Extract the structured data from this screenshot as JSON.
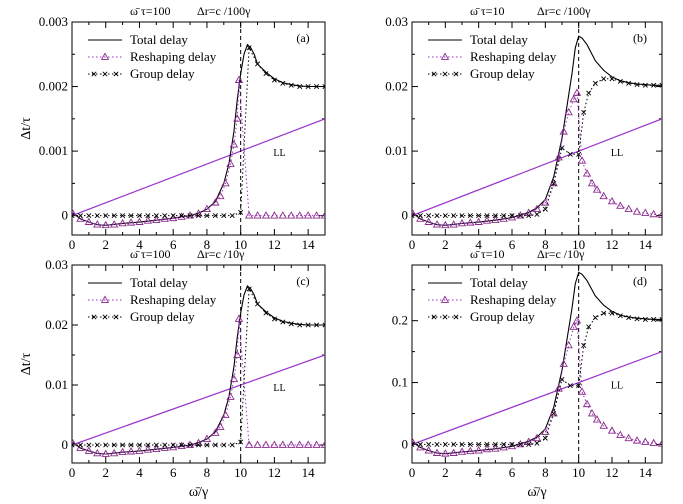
{
  "figure": {
    "ylabel_common": "Δt/τ",
    "xlabel_common": "ω̄/γ"
  },
  "chart_data": [
    {
      "type": "line",
      "panel_label": "(a)",
      "header_left": "ω̄ τ=100",
      "header_right": "Δr=c /100γ",
      "ylabel": "Δt/τ",
      "xlabel": "",
      "xlim": [
        0,
        15
      ],
      "ylim": [
        -0.0003,
        0.003
      ],
      "xticks": [
        0,
        2,
        4,
        6,
        8,
        10,
        12,
        14
      ],
      "yticks": [
        0,
        0.001,
        0.002,
        0.003
      ],
      "ytick_labels": [
        "0",
        "0.001",
        "0.002",
        "0.003"
      ],
      "vline_x": 10,
      "legend_position": "top-left",
      "ll_label": "LL",
      "ll_line": {
        "x": [
          0,
          15
        ],
        "y": [
          0,
          0.0015
        ],
        "color": "#9932cc"
      },
      "series": [
        {
          "name": "Total delay",
          "style": "solid",
          "x": [
            0,
            0.5,
            1,
            1.5,
            2,
            3,
            4,
            5,
            6,
            7,
            7.5,
            8,
            8.5,
            9,
            9.3,
            9.6,
            9.8,
            10,
            10.2,
            10.4,
            10.6,
            10.8,
            11,
            11.5,
            12,
            12.5,
            13,
            13.5,
            14,
            14.5,
            15
          ],
          "y": [
            5e-05,
            -5e-05,
            -0.0001,
            -0.00014,
            -0.00015,
            -0.00012,
            -0.0001,
            -7e-05,
            -4e-05,
            0.0,
            4e-05,
            0.0001,
            0.00022,
            0.0005,
            0.0008,
            0.0013,
            0.0018,
            0.0022,
            0.0025,
            0.00265,
            0.0026,
            0.0025,
            0.00235,
            0.00222,
            0.00212,
            0.00206,
            0.00203,
            0.00201,
            0.002,
            0.002,
            0.002
          ]
        },
        {
          "name": "Reshaping delay",
          "style": "dotted",
          "marker": "triangle",
          "x": [
            0,
            0.5,
            1,
            1.5,
            2,
            2.5,
            3,
            3.5,
            4,
            4.5,
            5,
            5.5,
            6,
            6.5,
            7,
            7.5,
            8,
            8.5,
            8.8,
            9.1,
            9.4,
            9.6,
            9.8,
            9.9,
            10.5,
            11,
            11.5,
            12,
            12.5,
            13,
            13.5,
            14,
            14.5,
            15
          ],
          "y": [
            5e-05,
            -5e-05,
            -0.0001,
            -0.00014,
            -0.00015,
            -0.00014,
            -0.00012,
            -0.00011,
            -0.0001,
            -8e-05,
            -7e-05,
            -5e-05,
            -4e-05,
            -2e-05,
            0.0,
            3e-05,
            0.0001,
            0.0002,
            0.0003,
            0.0005,
            0.0008,
            0.0011,
            0.0015,
            0.0021,
            0.0,
            0.0,
            0.0,
            0.0,
            0.0,
            0.0,
            0.0,
            0.0,
            0.0,
            0.0
          ]
        },
        {
          "name": "Group delay",
          "style": "dotted",
          "marker": "cross",
          "x": [
            0,
            0.5,
            1,
            1.5,
            2,
            2.5,
            3,
            3.5,
            4,
            4.5,
            5,
            5.5,
            6,
            6.5,
            7,
            7.5,
            8,
            8.5,
            9,
            9.5,
            10,
            10.5,
            11,
            11.5,
            12,
            12.5,
            13,
            13.5,
            14,
            14.5,
            15
          ],
          "y": [
            0,
            0,
            0,
            0,
            0,
            0,
            0,
            0,
            0,
            0,
            0,
            0,
            0,
            0,
            0,
            0,
            0,
            0,
            0,
            0,
            5e-05,
            0.0026,
            0.00235,
            0.0022,
            0.0021,
            0.00205,
            0.00202,
            0.002,
            0.002,
            0.002,
            0.002
          ]
        }
      ]
    },
    {
      "type": "line",
      "panel_label": "(b)",
      "header_left": "ω̄ τ=10",
      "header_right": "Δr=c /100γ",
      "ylabel": "",
      "xlabel": "",
      "xlim": [
        0,
        15
      ],
      "ylim": [
        -0.003,
        0.03
      ],
      "xticks": [
        0,
        2,
        4,
        6,
        8,
        10,
        12,
        14
      ],
      "yticks": [
        0,
        0.01,
        0.02,
        0.03
      ],
      "ytick_labels": [
        "0",
        "0.01",
        "0.02",
        "0.03"
      ],
      "vline_x": 10,
      "legend_position": "top-left",
      "ll_label": "LL",
      "ll_line": {
        "x": [
          0,
          15
        ],
        "y": [
          0,
          0.015
        ],
        "color": "#9932cc"
      },
      "series": [
        {
          "name": "Total delay",
          "style": "solid",
          "x": [
            0,
            0.5,
            1,
            1.5,
            2,
            3,
            4,
            5,
            6,
            7,
            7.5,
            8,
            8.5,
            9,
            9.3,
            9.6,
            9.8,
            10,
            10.2,
            10.5,
            11,
            11.5,
            12,
            12.5,
            13,
            13.5,
            14,
            14.5,
            15
          ],
          "y": [
            0.0005,
            -0.0005,
            -0.001,
            -0.0014,
            -0.0015,
            -0.0012,
            -0.001,
            -0.0007,
            -0.0003,
            0.0005,
            0.0012,
            0.0025,
            0.006,
            0.012,
            0.017,
            0.022,
            0.026,
            0.0278,
            0.0275,
            0.0265,
            0.024,
            0.0225,
            0.0215,
            0.0209,
            0.0206,
            0.0204,
            0.0203,
            0.0202,
            0.0202
          ]
        },
        {
          "name": "Reshaping delay",
          "style": "dotted",
          "marker": "triangle",
          "x": [
            0,
            0.5,
            1,
            1.5,
            2,
            2.5,
            3,
            3.5,
            4,
            4.5,
            5,
            5.5,
            6,
            6.5,
            7,
            7.5,
            8,
            8.5,
            8.8,
            9.1,
            9.4,
            9.7,
            9.9,
            10.2,
            10.5,
            10.8,
            11.1,
            11.5,
            12,
            12.5,
            13,
            13.5,
            14,
            14.5,
            15
          ],
          "y": [
            0.0005,
            -0.0005,
            -0.001,
            -0.0014,
            -0.0015,
            -0.0014,
            -0.0012,
            -0.0011,
            -0.001,
            -0.0008,
            -0.0007,
            -0.0005,
            -0.0003,
            0.0,
            0.0004,
            0.001,
            0.002,
            0.005,
            0.009,
            0.013,
            0.016,
            0.018,
            0.019,
            0.0085,
            0.0065,
            0.005,
            0.004,
            0.003,
            0.0022,
            0.0015,
            0.001,
            0.0006,
            0.0004,
            0.0002,
            0.0001
          ]
        },
        {
          "name": "Group delay",
          "style": "dotted",
          "marker": "cross",
          "x": [
            0,
            0.5,
            1,
            1.5,
            2,
            2.5,
            3,
            3.5,
            4,
            4.5,
            5,
            5.5,
            6,
            6.5,
            7,
            7.5,
            8,
            8.5,
            9,
            9.5,
            10,
            10.3,
            10.6,
            11,
            11.5,
            12,
            12.5,
            13,
            13.5,
            14,
            14.5,
            15
          ],
          "y": [
            0,
            0,
            0,
            0,
            0,
            0,
            0,
            0,
            0,
            0,
            0,
            0,
            0,
            0,
            0,
            0.0002,
            0.001,
            0.005,
            0.0105,
            0.0095,
            0.0095,
            0.016,
            0.019,
            0.0205,
            0.0212,
            0.0212,
            0.0208,
            0.0205,
            0.0203,
            0.0202,
            0.0202,
            0.0202
          ]
        }
      ]
    },
    {
      "type": "line",
      "panel_label": "(c)",
      "header_left": "ω̄ τ=100",
      "header_right": "Δr=c /10γ",
      "ylabel": "Δt/τ",
      "xlabel": "ω̄/γ",
      "xlim": [
        0,
        15
      ],
      "ylim": [
        -0.003,
        0.03
      ],
      "xticks": [
        0,
        2,
        4,
        6,
        8,
        10,
        12,
        14
      ],
      "yticks": [
        0,
        0.01,
        0.02,
        0.03
      ],
      "ytick_labels": [
        "0",
        "0.01",
        "0.02",
        "0.03"
      ],
      "vline_x": 10,
      "legend_position": "top-left",
      "ll_label": "LL",
      "ll_line": {
        "x": [
          0,
          15
        ],
        "y": [
          0,
          0.015
        ],
        "color": "#9932cc"
      },
      "series": [
        {
          "name": "Total delay",
          "style": "solid",
          "x": [
            0,
            0.5,
            1,
            1.5,
            2,
            3,
            4,
            5,
            6,
            7,
            7.5,
            8,
            8.5,
            9,
            9.3,
            9.6,
            9.8,
            10,
            10.2,
            10.4,
            10.6,
            10.8,
            11,
            11.5,
            12,
            12.5,
            13,
            13.5,
            14,
            14.5,
            15
          ],
          "y": [
            0.0005,
            -0.0005,
            -0.001,
            -0.0014,
            -0.0015,
            -0.0012,
            -0.001,
            -0.0007,
            -0.0004,
            0.0,
            0.0004,
            0.001,
            0.0022,
            0.005,
            0.008,
            0.013,
            0.018,
            0.022,
            0.025,
            0.0265,
            0.026,
            0.025,
            0.0235,
            0.0222,
            0.0212,
            0.0206,
            0.0203,
            0.0201,
            0.02,
            0.02,
            0.02
          ]
        },
        {
          "name": "Reshaping delay",
          "style": "dotted",
          "marker": "triangle",
          "x": [
            0,
            0.5,
            1,
            1.5,
            2,
            2.5,
            3,
            3.5,
            4,
            4.5,
            5,
            5.5,
            6,
            6.5,
            7,
            7.5,
            8,
            8.5,
            8.8,
            9.1,
            9.4,
            9.6,
            9.8,
            9.9,
            10.5,
            11,
            11.5,
            12,
            12.5,
            13,
            13.5,
            14,
            14.5,
            15
          ],
          "y": [
            0.0005,
            -0.0005,
            -0.001,
            -0.0014,
            -0.0015,
            -0.0014,
            -0.0012,
            -0.0011,
            -0.001,
            -0.0008,
            -0.0007,
            -0.0005,
            -0.0004,
            -0.0002,
            0.0,
            0.0003,
            0.001,
            0.002,
            0.003,
            0.005,
            0.008,
            0.011,
            0.015,
            0.021,
            0.0,
            0.0,
            0.0,
            0.0,
            0.0,
            0.0,
            0.0,
            0.0,
            0.0,
            0.0
          ]
        },
        {
          "name": "Group delay",
          "style": "dotted",
          "marker": "cross",
          "x": [
            0,
            0.5,
            1,
            1.5,
            2,
            2.5,
            3,
            3.5,
            4,
            4.5,
            5,
            5.5,
            6,
            6.5,
            7,
            7.5,
            8,
            8.5,
            9,
            9.5,
            10,
            10.5,
            11,
            11.5,
            12,
            12.5,
            13,
            13.5,
            14,
            14.5,
            15
          ],
          "y": [
            0,
            0,
            0,
            0,
            0,
            0,
            0,
            0,
            0,
            0,
            0,
            0,
            0,
            0,
            0,
            0,
            0,
            0,
            0,
            0,
            0.0005,
            0.026,
            0.0235,
            0.022,
            0.021,
            0.0205,
            0.0202,
            0.02,
            0.02,
            0.02,
            0.02
          ]
        }
      ]
    },
    {
      "type": "line",
      "panel_label": "(d)",
      "header_left": "ω̄ τ=10",
      "header_right": "Δr=c /10γ",
      "ylabel": "",
      "xlabel": "ω̄/γ",
      "xlim": [
        0,
        15
      ],
      "ylim": [
        -0.03,
        0.29
      ],
      "xticks": [
        0,
        2,
        4,
        6,
        8,
        10,
        12,
        14
      ],
      "yticks": [
        0,
        0.1,
        0.2
      ],
      "ytick_labels": [
        "0",
        "0.1",
        "0.2"
      ],
      "vline_x": 10,
      "legend_position": "top-left",
      "ll_label": "LL",
      "ll_line": {
        "x": [
          0,
          15
        ],
        "y": [
          0,
          0.15
        ],
        "color": "#9932cc"
      },
      "series": [
        {
          "name": "Total delay",
          "style": "solid",
          "x": [
            0,
            0.5,
            1,
            1.5,
            2,
            3,
            4,
            5,
            6,
            7,
            7.5,
            8,
            8.5,
            9,
            9.3,
            9.6,
            9.8,
            10,
            10.2,
            10.5,
            11,
            11.5,
            12,
            12.5,
            13,
            13.5,
            14,
            14.5,
            15
          ],
          "y": [
            0.005,
            -0.005,
            -0.01,
            -0.014,
            -0.015,
            -0.012,
            -0.01,
            -0.007,
            -0.003,
            0.005,
            0.012,
            0.025,
            0.06,
            0.12,
            0.17,
            0.22,
            0.26,
            0.278,
            0.275,
            0.265,
            0.24,
            0.225,
            0.215,
            0.209,
            0.206,
            0.204,
            0.203,
            0.202,
            0.202
          ]
        },
        {
          "name": "Reshaping delay",
          "style": "dotted",
          "marker": "triangle",
          "x": [
            0,
            0.5,
            1,
            1.5,
            2,
            2.5,
            3,
            3.5,
            4,
            4.5,
            5,
            5.5,
            6,
            6.5,
            7,
            7.5,
            8,
            8.5,
            8.8,
            9.1,
            9.4,
            9.7,
            9.9,
            10.2,
            10.5,
            10.8,
            11.1,
            11.5,
            12,
            12.5,
            13,
            13.5,
            14,
            14.5,
            15
          ],
          "y": [
            0.005,
            -0.005,
            -0.01,
            -0.014,
            -0.015,
            -0.014,
            -0.012,
            -0.011,
            -0.01,
            -0.008,
            -0.007,
            -0.005,
            -0.003,
            0.0,
            0.004,
            0.01,
            0.02,
            0.05,
            0.09,
            0.13,
            0.16,
            0.19,
            0.2,
            0.085,
            0.065,
            0.05,
            0.04,
            0.03,
            0.022,
            0.015,
            0.01,
            0.006,
            0.004,
            0.002,
            0.001
          ]
        },
        {
          "name": "Group delay",
          "style": "dotted",
          "marker": "cross",
          "x": [
            0,
            0.5,
            1,
            1.5,
            2,
            2.5,
            3,
            3.5,
            4,
            4.5,
            5,
            5.5,
            6,
            6.5,
            7,
            7.5,
            8,
            8.5,
            9,
            9.5,
            10,
            10.3,
            10.6,
            11,
            11.5,
            12,
            12.5,
            13,
            13.5,
            14,
            14.5,
            15
          ],
          "y": [
            0,
            0,
            0,
            0,
            0,
            0,
            0,
            0,
            0,
            0,
            0,
            0,
            0,
            0,
            0,
            0.002,
            0.01,
            0.05,
            0.105,
            0.095,
            0.095,
            0.16,
            0.19,
            0.205,
            0.212,
            0.212,
            0.208,
            0.205,
            0.203,
            0.202,
            0.202,
            0.202
          ]
        }
      ]
    }
  ]
}
